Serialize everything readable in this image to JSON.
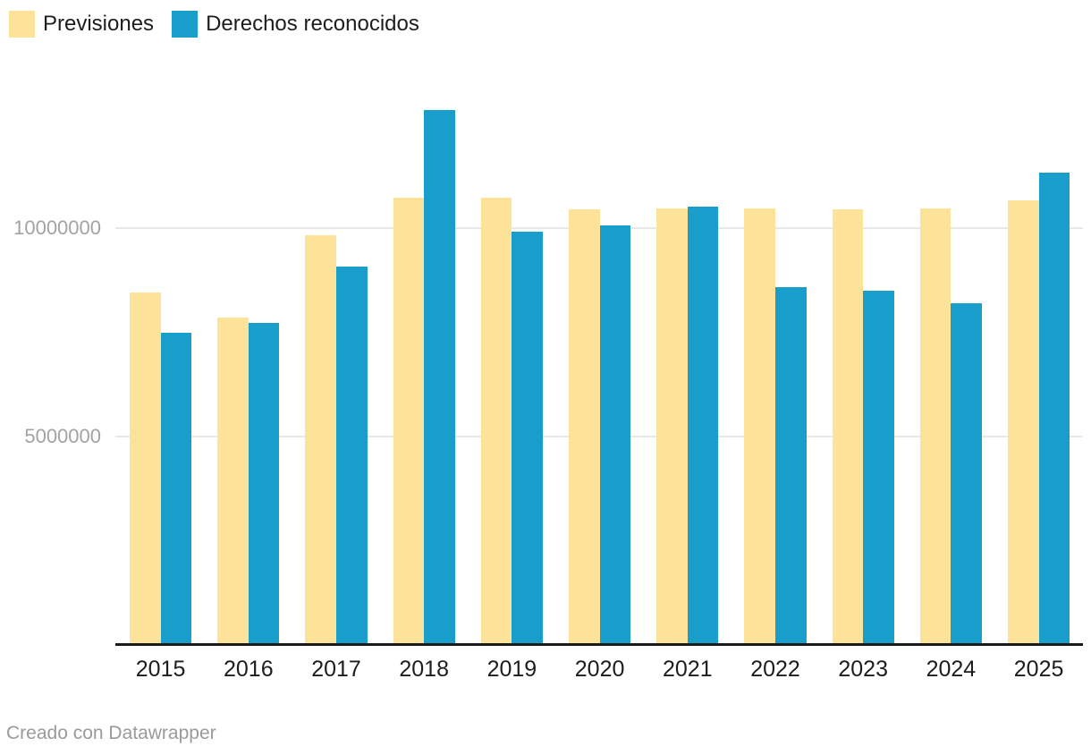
{
  "legend": {
    "items": [
      {
        "label": "Previsiones",
        "color": "#FDE299"
      },
      {
        "label": "Derechos reconocidos",
        "color": "#199DCA"
      }
    ]
  },
  "chart_data": {
    "type": "bar",
    "title": "",
    "xlabel": "",
    "ylabel": "",
    "categories": [
      "2015",
      "2016",
      "2017",
      "2018",
      "2019",
      "2020",
      "2021",
      "2022",
      "2023",
      "2024",
      "2025"
    ],
    "series": [
      {
        "name": "Previsiones",
        "color": "#FDE299",
        "values": [
          8450000,
          7850000,
          9830000,
          10730000,
          10730000,
          10450000,
          10470000,
          10470000,
          10450000,
          10470000,
          10670000
        ]
      },
      {
        "name": "Derechos reconocidos",
        "color": "#199DCA",
        "values": [
          7480000,
          7730000,
          9080000,
          12840000,
          9910000,
          10060000,
          10520000,
          8580000,
          8490000,
          8190000,
          11330000
        ]
      }
    ],
    "ylim": [
      0,
      13000000
    ],
    "yticks": [
      5000000,
      10000000
    ],
    "ytick_labels": [
      "5000000",
      "10000000"
    ],
    "grid": true,
    "legend_position": "top-left"
  },
  "footer": {
    "credit": "Creado con Datawrapper"
  }
}
